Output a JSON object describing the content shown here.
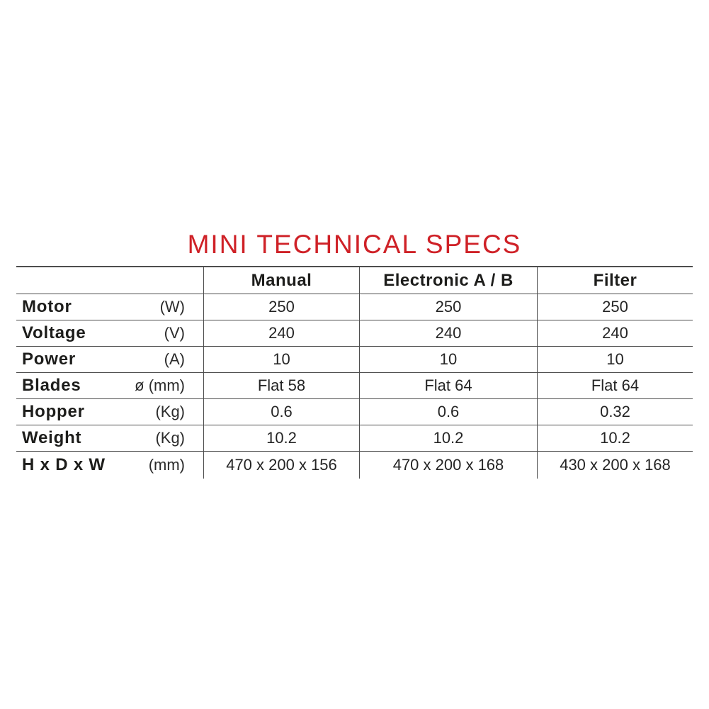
{
  "title": {
    "text": "MINI TECHNICAL SPECS",
    "color": "#cf2127"
  },
  "table": {
    "line_color": "#4d4d4d",
    "text_color": "#1d1d1b",
    "columns": [
      "Manual",
      "Electronic A / B",
      "Filter"
    ],
    "rows": [
      {
        "label": "Motor",
        "unit": "(W)",
        "values": [
          "250",
          "250",
          "250"
        ]
      },
      {
        "label": "Voltage",
        "unit": "(V)",
        "values": [
          "240",
          "240",
          "240"
        ]
      },
      {
        "label": "Power",
        "unit": "(A)",
        "values": [
          "10",
          "10",
          "10"
        ]
      },
      {
        "label": "Blades",
        "unit": "ø (mm)",
        "values": [
          "Flat 58",
          "Flat 64",
          "Flat 64"
        ]
      },
      {
        "label": "Hopper",
        "unit": "(Kg)",
        "values": [
          "0.6",
          "0.6",
          "0.32"
        ]
      },
      {
        "label": "Weight",
        "unit": "(Kg)",
        "values": [
          "10.2",
          "10.2",
          "10.2"
        ]
      },
      {
        "label": "H x D x W",
        "unit": "(mm)",
        "values": [
          "470 x 200 x 156",
          "470 x 200 x 168",
          "430 x 200 x 168"
        ]
      }
    ]
  }
}
